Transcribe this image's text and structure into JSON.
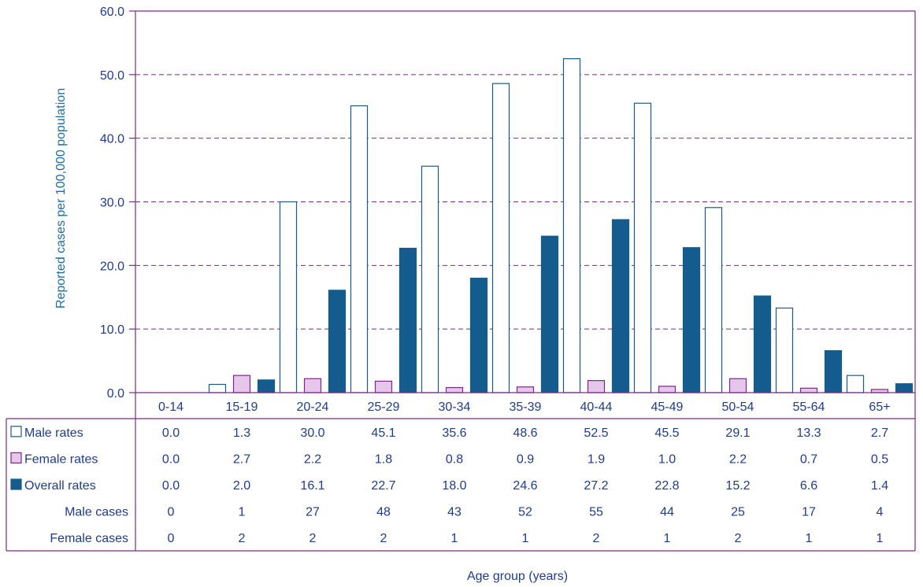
{
  "chart_data": {
    "type": "bar",
    "categories": [
      "0-14",
      "15-19",
      "20-24",
      "25-29",
      "30-34",
      "35-39",
      "40-44",
      "45-49",
      "50-54",
      "55-64",
      "65+"
    ],
    "series": [
      {
        "name": "Male rates",
        "values": [
          0.0,
          1.3,
          30.0,
          45.1,
          35.6,
          48.6,
          52.5,
          45.5,
          29.1,
          13.3,
          2.7
        ],
        "display": [
          "0.0",
          "1.3",
          "30.0",
          "45.1",
          "35.6",
          "48.6",
          "52.5",
          "45.5",
          "29.1",
          "13.3",
          "2.7"
        ],
        "color": "#ffffff",
        "stroke": "#1a5a8a"
      },
      {
        "name": "Female rates",
        "values": [
          0.0,
          2.7,
          2.2,
          1.8,
          0.8,
          0.9,
          1.9,
          1.0,
          2.2,
          0.7,
          0.5
        ],
        "display": [
          "0.0",
          "2.7",
          "2.2",
          "1.8",
          "0.8",
          "0.9",
          "1.9",
          "1.0",
          "2.2",
          "0.7",
          "0.5"
        ],
        "color": "#e6c6ea",
        "stroke": "#7a2a86"
      },
      {
        "name": "Overall rates",
        "values": [
          0.0,
          2.0,
          16.1,
          22.7,
          18.0,
          24.6,
          27.2,
          22.8,
          15.2,
          6.6,
          1.4
        ],
        "display": [
          "0.0",
          "2.0",
          "16.1",
          "22.7",
          "18.0",
          "24.6",
          "27.2",
          "22.8",
          "15.2",
          "6.6",
          "1.4"
        ],
        "color": "#155c8e",
        "stroke": "#155c8e"
      }
    ],
    "extra_rows": [
      {
        "name": "Male cases",
        "values": [
          "0",
          "1",
          "27",
          "48",
          "43",
          "52",
          "55",
          "44",
          "25",
          "17",
          "4"
        ]
      },
      {
        "name": "Female cases",
        "values": [
          "0",
          "2",
          "2",
          "2",
          "1",
          "1",
          "2",
          "1",
          "2",
          "1",
          "1"
        ]
      }
    ],
    "ylim": [
      0,
      60
    ],
    "yticks": [
      "0.0",
      "10.0",
      "20.0",
      "30.0",
      "40.0",
      "50.0",
      "60.0"
    ],
    "ylabel": "Reported cases per 100,000 population",
    "xlabel": "Age group (years)",
    "grid": "horizontal dashed",
    "legend": "table-left",
    "axis_color": "#7a2a86"
  }
}
